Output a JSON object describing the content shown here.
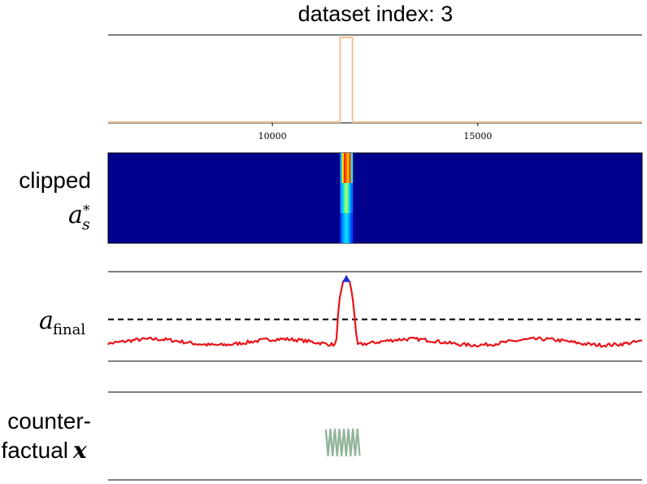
{
  "title": "dataset index: 3",
  "colors": {
    "signal": "#000000",
    "window": "#f2c29a",
    "heat_bg": "#00008f",
    "score": "#e8141a",
    "threshold": "#000000",
    "peak_marker": "#1f2fd6",
    "counterfactual": "#7fa88a"
  },
  "panels": [
    {
      "name": "signal",
      "label": ""
    },
    {
      "name": "clipped-saliency",
      "label_text": "clipped",
      "label_math": "a",
      "label_sub": "s",
      "label_sup": "*"
    },
    {
      "name": "final-score",
      "label_math": "a",
      "label_sub": "final"
    },
    {
      "name": "counterfactual",
      "label_line1": "counter-",
      "label_line2": "factual",
      "label_math": "x"
    }
  ],
  "chart_data": [
    {
      "type": "line",
      "panel": "signal",
      "title": "dataset index: 3",
      "xlim": [
        6000,
        19000
      ],
      "xticks": [
        10000,
        15000
      ],
      "xtick_labels": [
        "10000",
        "15000"
      ],
      "grid": false,
      "series": [
        {
          "name": "",
          "description_free": true,
          "beat_period": 260,
          "values_range": [
            -1.3,
            1.4
          ]
        },
        {
          "name": "",
          "type": "step",
          "x": [
            6000,
            11650,
            11650,
            11950,
            11950,
            19000
          ],
          "values": [
            0,
            0,
            1,
            1,
            0,
            0
          ]
        }
      ]
    },
    {
      "type": "heatmap",
      "panel": "clipped-saliency",
      "xlim": [
        6000,
        19000
      ],
      "rows": 3,
      "hot_region": [
        11650,
        11950
      ]
    },
    {
      "type": "line",
      "panel": "final-score",
      "xlim": [
        6000,
        19000
      ],
      "threshold": 0.5,
      "ylim": [
        -0.2,
        1.3
      ],
      "peak": {
        "x": 11800,
        "y": 1.18
      }
    },
    {
      "type": "line",
      "panel": "counterfactual",
      "xlim": [
        6000,
        19000
      ],
      "replaced_region": [
        11300,
        12100
      ]
    }
  ]
}
